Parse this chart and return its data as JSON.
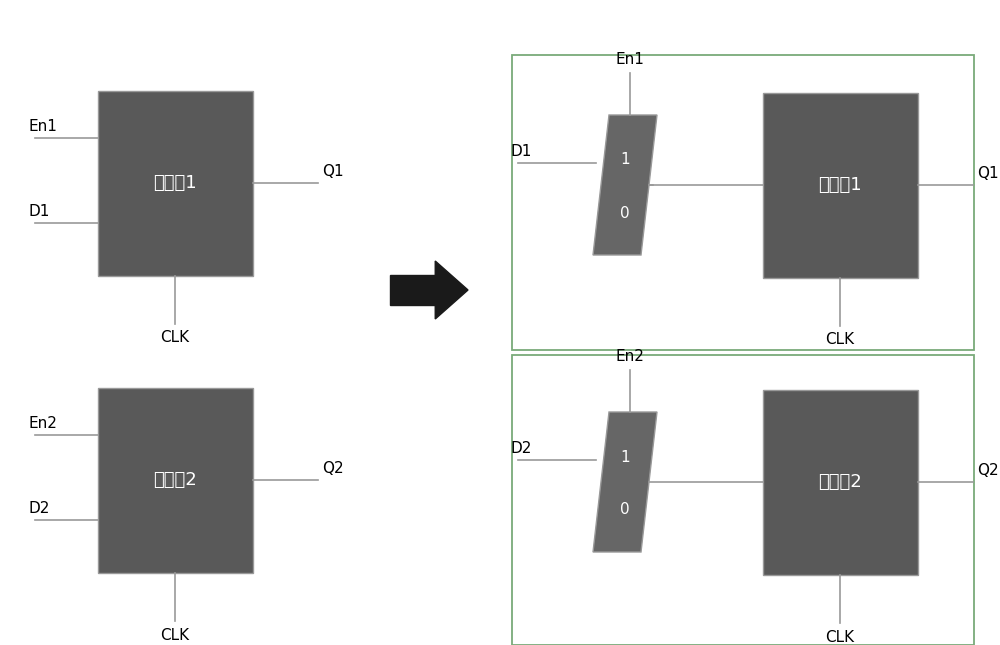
{
  "bg_color": "#ffffff",
  "box_color": "#595959",
  "box_edge_color": "#999999",
  "line_color": "#999999",
  "text_color": "#ffffff",
  "label_color": "#000000",
  "mux_color": "#666666",
  "outline_color": "#7aaa7a",
  "arrow_color": "#1a1a1a",
  "reg1_label": "寄存劄1",
  "reg2_label": "寄存劄2",
  "clk_label": "CLK",
  "q1_label": "Q1",
  "q2_label": "Q2",
  "en1_label": "En1",
  "en2_label": "En2",
  "d1_label": "D1",
  "d2_label": "D2",
  "mux_top": "1",
  "mux_bot": "0"
}
